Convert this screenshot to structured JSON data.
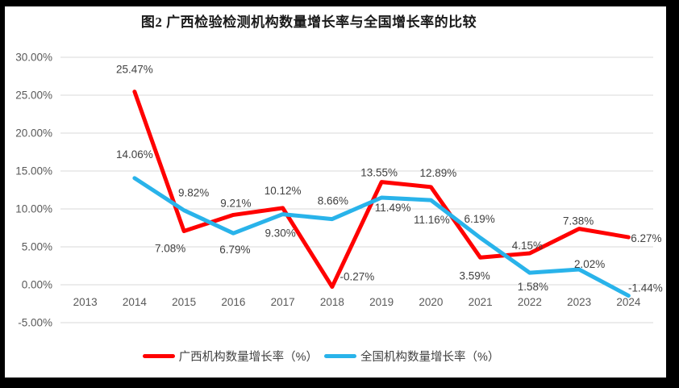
{
  "figure": {
    "frame_color": "#000000",
    "background_color": "#ffffff"
  },
  "chart_data": {
    "type": "line",
    "title": "图2 广西检验检测机构数量增长率与全国增长率的比较",
    "categories": [
      "2013",
      "2014",
      "2015",
      "2016",
      "2017",
      "2018",
      "2019",
      "2020",
      "2021",
      "2022",
      "2023",
      "2024"
    ],
    "series": [
      {
        "name": "广西机构数量增长率（%）",
        "color": "#FF0000",
        "values": [
          null,
          25.47,
          7.08,
          9.21,
          10.12,
          -0.27,
          13.55,
          12.89,
          3.59,
          4.15,
          7.38,
          6.27
        ],
        "labels": [
          "",
          "25.47%",
          "7.08%",
          "9.21%",
          "10.12%",
          "-0.27%",
          "13.55%",
          "12.89%",
          "3.59%",
          "4.15%",
          "7.38%",
          "6.27%"
        ]
      },
      {
        "name": "全国机构数量增长率（%）",
        "color": "#29B3EA",
        "values": [
          null,
          14.06,
          9.82,
          6.79,
          9.3,
          8.66,
          11.49,
          11.16,
          6.19,
          1.58,
          2.02,
          -1.44
        ],
        "labels": [
          "",
          "14.06%",
          "9.82%",
          "6.79%",
          "9.30%",
          "8.66%",
          "11.49%",
          "11.16%",
          "6.19%",
          "1.58%",
          "2.02%",
          "-1.44%"
        ]
      }
    ],
    "y_ticks": [
      "30.00%",
      "25.00%",
      "20.00%",
      "15.00%",
      "10.00%",
      "5.00%",
      "0.00%",
      "-5.00%"
    ],
    "y_tick_values": [
      30,
      25,
      20,
      15,
      10,
      5,
      0,
      -5
    ],
    "ylim": [
      -5,
      30
    ],
    "grid": true,
    "legend_position": "bottom",
    "axis_text_color": "#595959",
    "data_label_color": "#404040",
    "gridline_color": "#D9D9D9"
  }
}
